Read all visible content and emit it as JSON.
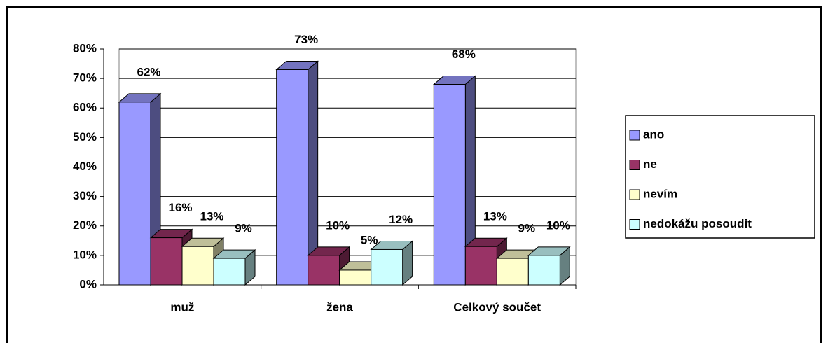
{
  "chart_data": {
    "type": "bar3d",
    "categories": [
      "muž",
      "žena",
      "Celkový součet"
    ],
    "series": [
      {
        "name": "ano",
        "color": "#9999ff",
        "values": [
          62,
          73,
          68
        ],
        "value_labels": [
          "62%",
          "73%",
          "68%"
        ]
      },
      {
        "name": "ne",
        "color": "#993366",
        "values": [
          16,
          10,
          13
        ],
        "value_labels": [
          "16%",
          "10%",
          "13%"
        ]
      },
      {
        "name": "nevím",
        "color": "#ffffcc",
        "values": [
          13,
          5,
          9
        ],
        "value_labels": [
          "13%",
          "5%",
          "9%"
        ]
      },
      {
        "name": "nedokážu posoudit",
        "color": "#ccffff",
        "values": [
          9,
          12,
          10
        ],
        "value_labels": [
          "9%",
          "12%",
          "10%"
        ]
      }
    ],
    "ylim": [
      0,
      80
    ],
    "yticks": [
      {
        "value": 0,
        "label": "0%"
      },
      {
        "value": 10,
        "label": "10%"
      },
      {
        "value": 20,
        "label": "20%"
      },
      {
        "value": 30,
        "label": "30%"
      },
      {
        "value": 40,
        "label": "40%"
      },
      {
        "value": 50,
        "label": "50%"
      },
      {
        "value": 60,
        "label": "60%"
      },
      {
        "value": 70,
        "label": "70%"
      },
      {
        "value": 80,
        "label": "80%"
      }
    ],
    "grid": true,
    "legend": "right"
  }
}
